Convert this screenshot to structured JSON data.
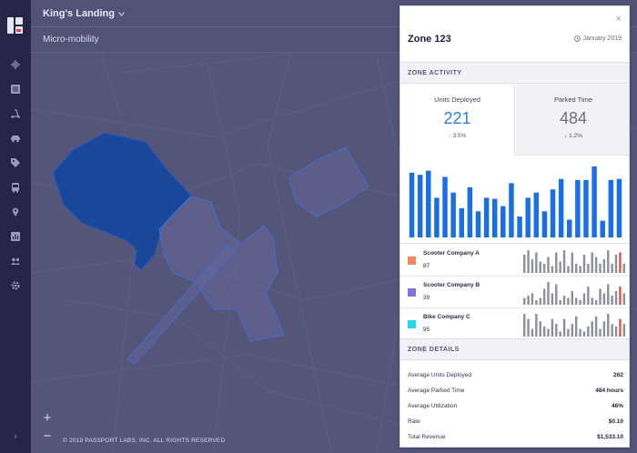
{
  "header": {
    "city": "King's Landing",
    "mode": "Micro-mobility"
  },
  "nav": {
    "items": [
      "live-icon",
      "list-icon",
      "scooter-icon",
      "car-icon",
      "tag-icon",
      "bus-icon",
      "pin-icon",
      "chart-icon",
      "users-icon",
      "gear-icon"
    ],
    "collapse": "›"
  },
  "map": {
    "zoom_in": "+",
    "zoom_out": "−",
    "copyright": "© 2019 PASSPORT LABS, INC. ALL RIGHTS RESERVED"
  },
  "panel": {
    "close": "×",
    "title": "Zone 123",
    "period": "January 2019",
    "activity_header": "ZONE ACTIVITY",
    "metrics": [
      {
        "label": "Units Deployed",
        "value": "221",
        "change": "3.5%",
        "direction": "up",
        "color": "#2c7fe8"
      },
      {
        "label": "Parked Time",
        "value": "484",
        "change": "1.2%",
        "direction": "down",
        "color": "#6e6e82"
      }
    ],
    "chart_color": "#1a6ee6",
    "chart_values": [
      62,
      60,
      64,
      38,
      58,
      43,
      28,
      48,
      25,
      38,
      37,
      30,
      52,
      20,
      38,
      43,
      25,
      46,
      56,
      17,
      55,
      55,
      68,
      16,
      55,
      56
    ],
    "companies": [
      {
        "name": "Scooter Company A",
        "value": "87",
        "color": "#f2885a",
        "accent": "#e05050",
        "spark": [
          8,
          10,
          6,
          9,
          5,
          4,
          7,
          3,
          9,
          5,
          10,
          3,
          9,
          4,
          3,
          8,
          4,
          9,
          7,
          4,
          6,
          10,
          4,
          8,
          9,
          4
        ]
      },
      {
        "name": "Scooter Company B",
        "value": "39",
        "color": "#7f75d6",
        "accent": "#e05050",
        "spark": [
          3,
          4,
          5,
          2,
          3,
          7,
          10,
          5,
          9,
          2,
          4,
          3,
          6,
          3,
          2,
          5,
          8,
          3,
          2,
          7,
          5,
          9,
          4,
          6,
          8,
          5
        ]
      },
      {
        "name": "Bike Company C",
        "value": "95",
        "color": "#24d6ea",
        "accent": "#e05050",
        "spark": [
          9,
          7,
          3,
          9,
          6,
          4,
          3,
          7,
          5,
          2,
          7,
          3,
          5,
          8,
          3,
          2,
          4,
          6,
          8,
          3,
          6,
          9,
          5,
          4,
          7,
          5
        ]
      }
    ],
    "details_header": "ZONE DETAILS",
    "details": [
      {
        "label": "Average Units Deployed",
        "value": "262"
      },
      {
        "label": "Average Parked Time",
        "value": "484 hours"
      },
      {
        "label": "Average Utilization",
        "value": "46%"
      },
      {
        "label": "Rate",
        "value": "$0.10"
      },
      {
        "label": "Total Revenue",
        "value": "$1,533.10"
      }
    ]
  }
}
